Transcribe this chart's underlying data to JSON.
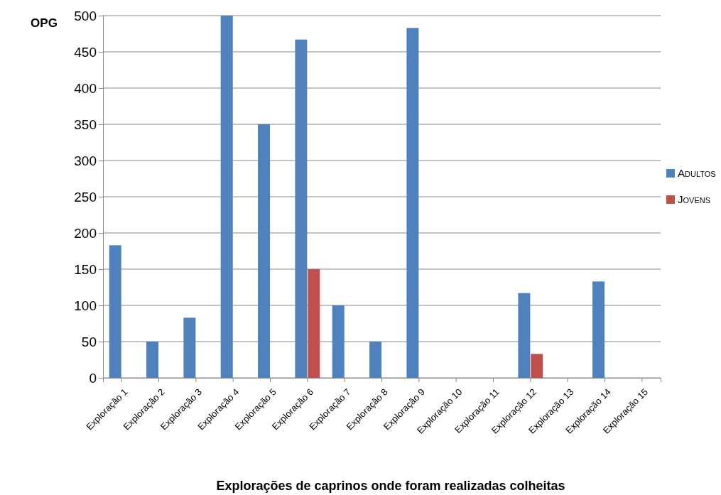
{
  "chart_data": {
    "type": "bar",
    "ylabel": "OPG",
    "xlabel": "Explorações de caprinos onde foram realizadas colheitas",
    "categories": [
      "Exploração 1",
      "Exploração 2",
      "Exploração 3",
      "Exploração 4",
      "Exploração 5",
      "Exploração 6",
      "Exploração 7",
      "Exploração 8",
      "Exploração 9",
      "Exploração 10",
      "Exploração 11",
      "Exploração 12",
      "Exploração 13",
      "Exploração 14",
      "Exploração 15"
    ],
    "series": [
      {
        "name": "Adultos",
        "color": "#4f81bd",
        "values": [
          183,
          50,
          83,
          500,
          350,
          467,
          100,
          50,
          483,
          0,
          0,
          117,
          0,
          133,
          0
        ]
      },
      {
        "name": "Jovens",
        "color": "#c0504d",
        "values": [
          0,
          0,
          0,
          0,
          0,
          150,
          0,
          0,
          0,
          0,
          0,
          33,
          0,
          0,
          0
        ]
      }
    ],
    "ylim": [
      0,
      500
    ],
    "yticks": [
      0,
      50,
      100,
      150,
      200,
      250,
      300,
      350,
      400,
      450,
      500
    ],
    "grid": "y",
    "legend": "right"
  }
}
